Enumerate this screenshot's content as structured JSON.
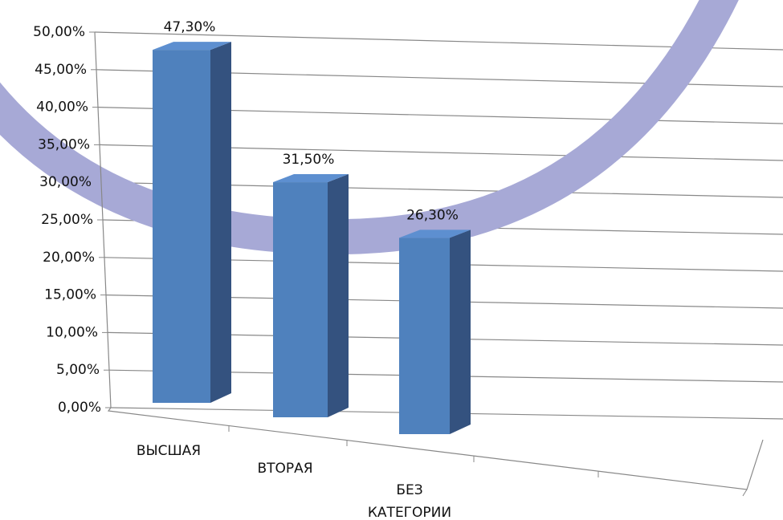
{
  "chart_data": {
    "type": "bar3d",
    "categories": [
      "ВЫСШАЯ",
      "ВТОРАЯ",
      "БЕЗ КАТЕГОРИИ"
    ],
    "values": [
      47.3,
      31.5,
      26.3
    ],
    "value_labels": [
      "47,30%",
      "31,50%",
      "26,30%"
    ],
    "color": "#4f81bd",
    "ylim": [
      0,
      50
    ],
    "yticks": [
      {
        "value": 0,
        "label": "0,00%"
      },
      {
        "value": 5,
        "label": "5,00%"
      },
      {
        "value": 10,
        "label": "10,00%"
      },
      {
        "value": 15,
        "label": "15,00%"
      },
      {
        "value": 20,
        "label": "20,00%"
      },
      {
        "value": 25,
        "label": "25,00%"
      },
      {
        "value": 30,
        "label": "30,00%"
      },
      {
        "value": 35,
        "label": "35,00%"
      },
      {
        "value": 40,
        "label": "40,00%"
      },
      {
        "value": 45,
        "label": "45,00%"
      },
      {
        "value": 50,
        "label": "50,00%"
      }
    ],
    "grid": true
  }
}
